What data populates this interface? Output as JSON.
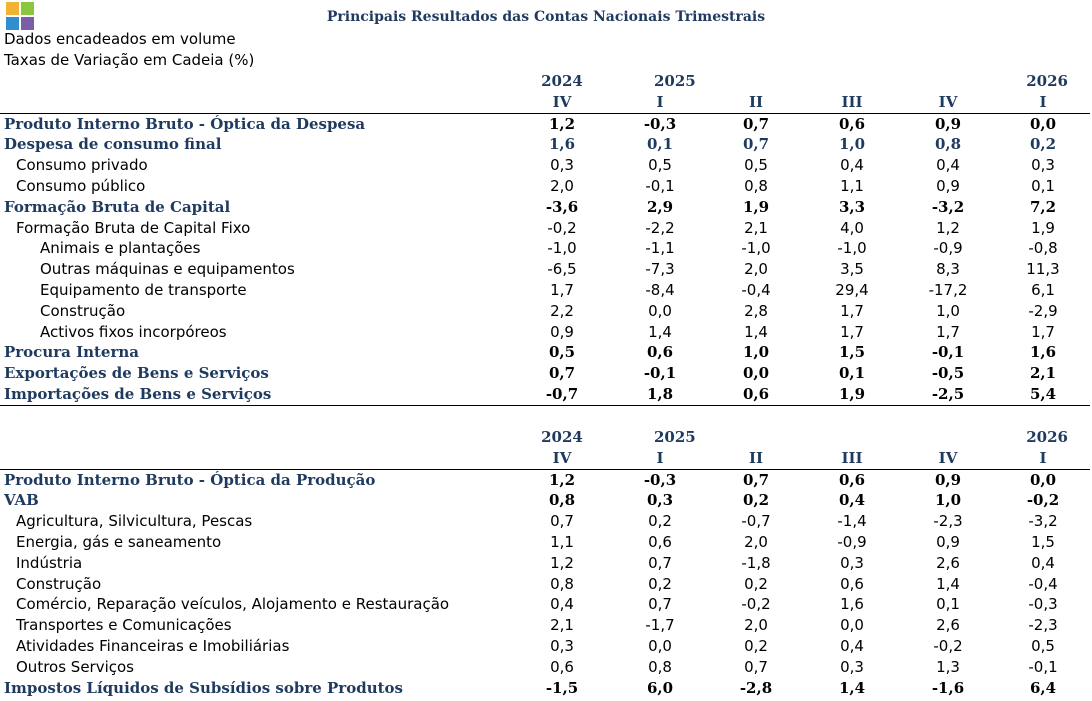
{
  "title": "Principais Resultados das Contas Nacionais Trimestrais",
  "subtitle1": "Dados encadeados em volume",
  "subtitle2": "Taxas de Variação em Cadeia (%)",
  "logo_colors": [
    "#f2b233",
    "#8cc63f",
    "#2f8fd1",
    "#7b5ea7"
  ],
  "years": [
    "2024",
    "2025",
    "",
    "",
    "",
    "2026"
  ],
  "quarters": [
    "IV",
    "I",
    "II",
    "III",
    "IV",
    "I"
  ],
  "table1": [
    {
      "label": "Produto Interno Bruto - Óptica da Despesa",
      "style": "bold dark",
      "indent": 0,
      "values": [
        "1,2",
        "-0,3",
        "0,7",
        "0,6",
        "0,9",
        "0,0"
      ],
      "underline": true
    },
    {
      "label": "Despesa de consumo final",
      "style": "bold",
      "indent": 0,
      "values": [
        "1,6",
        "0,1",
        "0,7",
        "1,0",
        "0,8",
        "0,2"
      ]
    },
    {
      "label": "Consumo privado",
      "style": "",
      "indent": 1,
      "values": [
        "0,3",
        "0,5",
        "0,5",
        "0,4",
        "0,4",
        "0,3"
      ]
    },
    {
      "label": "Consumo público",
      "style": "",
      "indent": 1,
      "values": [
        "2,0",
        "-0,1",
        "0,8",
        "1,1",
        "0,9",
        "0,1"
      ]
    },
    {
      "label": "Formação Bruta de Capital",
      "style": "bold dark",
      "indent": 0,
      "values": [
        "-3,6",
        "2,9",
        "1,9",
        "3,3",
        "-3,2",
        "7,2"
      ]
    },
    {
      "label": "Formação Bruta de Capital Fixo",
      "style": "",
      "indent": 1,
      "values": [
        "-0,2",
        "-2,2",
        "2,1",
        "4,0",
        "1,2",
        "1,9"
      ]
    },
    {
      "label": "Animais e plantações",
      "style": "",
      "indent": 2,
      "values": [
        "-1,0",
        "-1,1",
        "-1,0",
        "-1,0",
        "-0,9",
        "-0,8"
      ]
    },
    {
      "label": "Outras máquinas e equipamentos",
      "style": "",
      "indent": 2,
      "values": [
        "-6,5",
        "-7,3",
        "2,0",
        "3,5",
        "8,3",
        "11,3"
      ]
    },
    {
      "label": "Equipamento de transporte",
      "style": "",
      "indent": 2,
      "values": [
        "1,7",
        "-8,4",
        "-0,4",
        "29,4",
        "-17,2",
        "6,1"
      ]
    },
    {
      "label": "Construção",
      "style": "",
      "indent": 2,
      "values": [
        "2,2",
        "0,0",
        "2,8",
        "1,7",
        "1,0",
        "-2,9"
      ]
    },
    {
      "label": "Activos fixos incorpóreos",
      "style": "",
      "indent": 2,
      "values": [
        "0,9",
        "1,4",
        "1,4",
        "1,7",
        "1,7",
        "1,7"
      ]
    },
    {
      "label": "Procura Interna",
      "style": "bold dark",
      "indent": 0,
      "values": [
        "0,5",
        "0,6",
        "1,0",
        "1,5",
        "-0,1",
        "1,6"
      ]
    },
    {
      "label": "Exportações de Bens e Serviços",
      "style": "bold dark",
      "indent": 0,
      "values": [
        "0,7",
        "-0,1",
        "0,0",
        "0,1",
        "-0,5",
        "2,1"
      ]
    },
    {
      "label": "Importações de Bens e Serviços",
      "style": "bold dark",
      "indent": 0,
      "values": [
        "-0,7",
        "1,8",
        "0,6",
        "1,9",
        "-2,5",
        "5,4"
      ],
      "last": true
    }
  ],
  "table2": [
    {
      "label": "Produto Interno Bruto - Óptica da Produção",
      "style": "bold dark",
      "indent": 0,
      "values": [
        "1,2",
        "-0,3",
        "0,7",
        "0,6",
        "0,9",
        "0,0"
      ],
      "underline": true
    },
    {
      "label": "VAB",
      "style": "bold dark",
      "indent": 0,
      "values": [
        "0,8",
        "0,3",
        "0,2",
        "0,4",
        "1,0",
        "-0,2"
      ]
    },
    {
      "label": "Agricultura, Silvicultura, Pescas",
      "style": "",
      "indent": 1,
      "values": [
        "0,7",
        "0,2",
        "-0,7",
        "-1,4",
        "-2,3",
        "-3,2"
      ]
    },
    {
      "label": "Energia, gás e saneamento",
      "style": "",
      "indent": 1,
      "values": [
        "1,1",
        "0,6",
        "2,0",
        "-0,9",
        "0,9",
        "1,5"
      ]
    },
    {
      "label": "Indústria",
      "style": "",
      "indent": 1,
      "values": [
        "1,2",
        "0,7",
        "-1,8",
        "0,3",
        "2,6",
        "0,4"
      ]
    },
    {
      "label": "Construção",
      "style": "",
      "indent": 1,
      "values": [
        "0,8",
        "0,2",
        "0,2",
        "0,6",
        "1,4",
        "-0,4"
      ]
    },
    {
      "label": "Comércio, Reparação veículos, Alojamento e Restauração",
      "style": "",
      "indent": 1,
      "values": [
        "0,4",
        "0,7",
        "-0,2",
        "1,6",
        "0,1",
        "-0,3"
      ]
    },
    {
      "label": "Transportes e Comunicações",
      "style": "",
      "indent": 1,
      "values": [
        "2,1",
        "-1,7",
        "2,0",
        "0,0",
        "2,6",
        "-2,3"
      ]
    },
    {
      "label": "Atividades Financeiras e Imobiliárias",
      "style": "",
      "indent": 1,
      "values": [
        "0,3",
        "0,0",
        "0,2",
        "0,4",
        "-0,2",
        "0,5"
      ]
    },
    {
      "label": "Outros Serviços",
      "style": "",
      "indent": 1,
      "values": [
        "0,6",
        "0,8",
        "0,7",
        "0,3",
        "1,3",
        "-0,1"
      ]
    },
    {
      "label": "Impostos Líquidos de Subsídios sobre Produtos",
      "style": "bold dark",
      "indent": 0,
      "values": [
        "-1,5",
        "6,0",
        "-2,8",
        "1,4",
        "-1,6",
        "6,4"
      ]
    }
  ]
}
